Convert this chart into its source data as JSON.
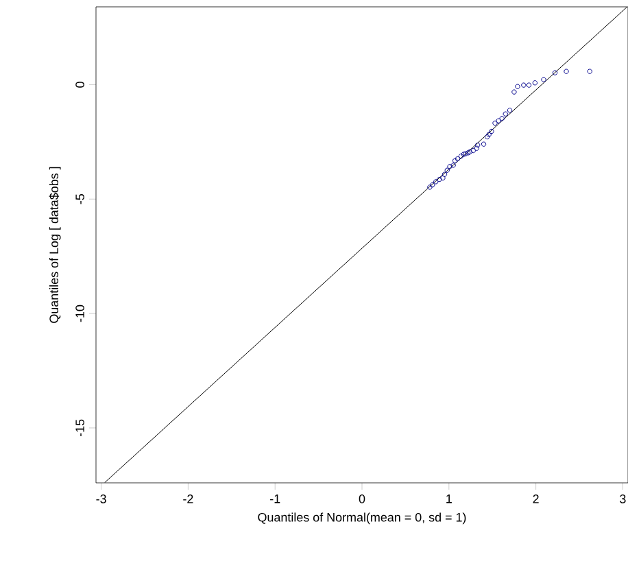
{
  "chart_data": {
    "type": "scatter",
    "xlabel": "Quantiles of Normal(mean = 0, sd = 1)",
    "ylabel": "Quantiles of Log [ data$obs ]",
    "xlim": [
      -3.06,
      3.06
    ],
    "ylim": [
      -17.4,
      3.4
    ],
    "xticks": [
      -3,
      -2,
      -1,
      0,
      1,
      2,
      3
    ],
    "yticks": [
      -15,
      -10,
      -5,
      0
    ],
    "series": [
      {
        "marker": "circle",
        "color": "#00008b",
        "x": [
          0.78,
          0.81,
          0.85,
          0.89,
          0.93,
          0.95,
          0.98,
          1.01,
          1.05,
          1.07,
          1.1,
          1.14,
          1.17,
          1.19,
          1.22,
          1.24,
          1.28,
          1.32,
          1.33,
          1.4,
          1.44,
          1.46,
          1.49,
          1.53,
          1.57,
          1.61,
          1.65,
          1.7,
          1.75,
          1.79,
          1.86,
          1.92,
          1.99,
          2.09,
          2.22,
          2.35,
          2.62
        ],
        "values": [
          -4.48,
          -4.38,
          -4.24,
          -4.14,
          -4.08,
          -3.92,
          -3.74,
          -3.58,
          -3.52,
          -3.32,
          -3.24,
          -3.12,
          -3.04,
          -3.02,
          -2.98,
          -2.94,
          -2.88,
          -2.78,
          -2.64,
          -2.6,
          -2.28,
          -2.18,
          -2.04,
          -1.68,
          -1.58,
          -1.48,
          -1.28,
          -1.12,
          -0.32,
          -0.08,
          -0.02,
          -0.02,
          0.08,
          0.22,
          0.52,
          0.58,
          0.58
        ]
      },
      {
        "type": "line",
        "marker": "none",
        "color": "#000000",
        "x": [
          -2.96,
          3.05
        ],
        "values": [
          -17.39,
          3.4
        ]
      }
    ]
  }
}
